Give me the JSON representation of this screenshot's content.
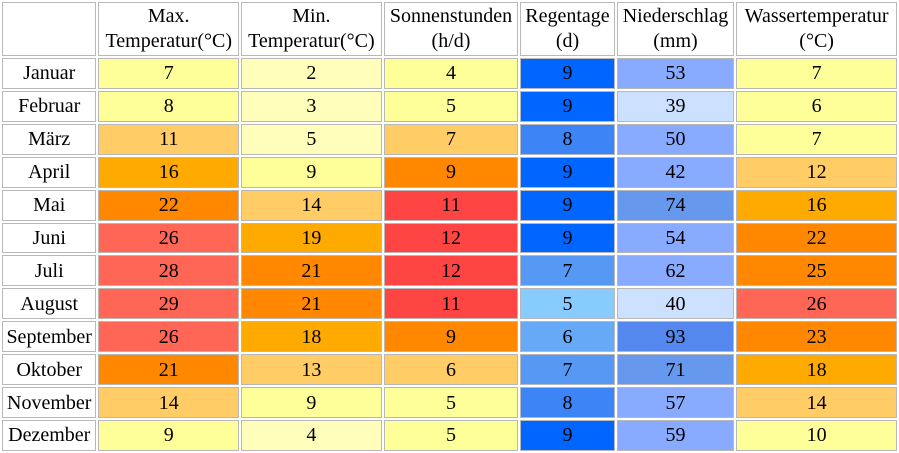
{
  "chart_data": {
    "type": "table",
    "columns": [
      [
        "Max.",
        "Temperatur(°C)"
      ],
      [
        "Min.",
        "Temperatur(°C)"
      ],
      [
        "Sonnenstunden",
        "(h/d)"
      ],
      [
        "Regentage",
        "(d)"
      ],
      [
        "Niederschlag",
        "(mm)"
      ],
      [
        "Wassertemperatur",
        "(°C)"
      ]
    ],
    "rows": [
      {
        "month": "Januar",
        "values": [
          7,
          2,
          4,
          9,
          53,
          7
        ],
        "colors": [
          "#ffff99",
          "#ffffbb",
          "#ffff99",
          "#0066ff",
          "#88aaff",
          "#ffff99"
        ]
      },
      {
        "month": "Februar",
        "values": [
          8,
          3,
          5,
          9,
          39,
          6
        ],
        "colors": [
          "#ffff99",
          "#ffffbb",
          "#ffff99",
          "#0066ff",
          "#cce0ff",
          "#ffff99"
        ]
      },
      {
        "month": "März",
        "values": [
          11,
          5,
          7,
          8,
          50,
          7
        ],
        "colors": [
          "#ffcc66",
          "#ffffbb",
          "#ffcc66",
          "#3d85f7",
          "#88aaff",
          "#ffff99"
        ]
      },
      {
        "month": "April",
        "values": [
          16,
          9,
          9,
          9,
          42,
          12
        ],
        "colors": [
          "#ffaa00",
          "#ffff99",
          "#ff8800",
          "#0066ff",
          "#88aaff",
          "#ffcc66"
        ]
      },
      {
        "month": "Mai",
        "values": [
          22,
          14,
          11,
          9,
          74,
          16
        ],
        "colors": [
          "#ff8800",
          "#ffcc66",
          "#ff4444",
          "#0066ff",
          "#6699ee",
          "#ffaa00"
        ]
      },
      {
        "month": "Juni",
        "values": [
          26,
          19,
          12,
          9,
          54,
          22
        ],
        "colors": [
          "#ff6655",
          "#ffaa00",
          "#ff4444",
          "#0066ff",
          "#88aaff",
          "#ff8800"
        ]
      },
      {
        "month": "Juli",
        "values": [
          28,
          21,
          12,
          7,
          62,
          25
        ],
        "colors": [
          "#ff6655",
          "#ff8800",
          "#ff4444",
          "#5599f5",
          "#88aaff",
          "#ff8800"
        ]
      },
      {
        "month": "August",
        "values": [
          29,
          21,
          11,
          5,
          40,
          26
        ],
        "colors": [
          "#ff6655",
          "#ff8800",
          "#ff4444",
          "#88ccff",
          "#cce0ff",
          "#ff6655"
        ]
      },
      {
        "month": "September",
        "values": [
          26,
          18,
          9,
          6,
          93,
          23
        ],
        "colors": [
          "#ff6655",
          "#ffaa00",
          "#ff8800",
          "#66aaf7",
          "#5588ee",
          "#ff8800"
        ]
      },
      {
        "month": "Oktober",
        "values": [
          21,
          13,
          6,
          7,
          71,
          18
        ],
        "colors": [
          "#ff8800",
          "#ffcc66",
          "#ffcc66",
          "#5599f5",
          "#6699ee",
          "#ffaa00"
        ]
      },
      {
        "month": "November",
        "values": [
          14,
          9,
          5,
          8,
          57,
          14
        ],
        "colors": [
          "#ffcc66",
          "#ffff99",
          "#ffff99",
          "#3d85f7",
          "#88aaff",
          "#ffcc66"
        ]
      },
      {
        "month": "Dezember",
        "values": [
          9,
          4,
          5,
          9,
          59,
          10
        ],
        "colors": [
          "#ffff99",
          "#ffffbb",
          "#ffff99",
          "#0066ff",
          "#88aaff",
          "#ffff99"
        ]
      }
    ]
  }
}
